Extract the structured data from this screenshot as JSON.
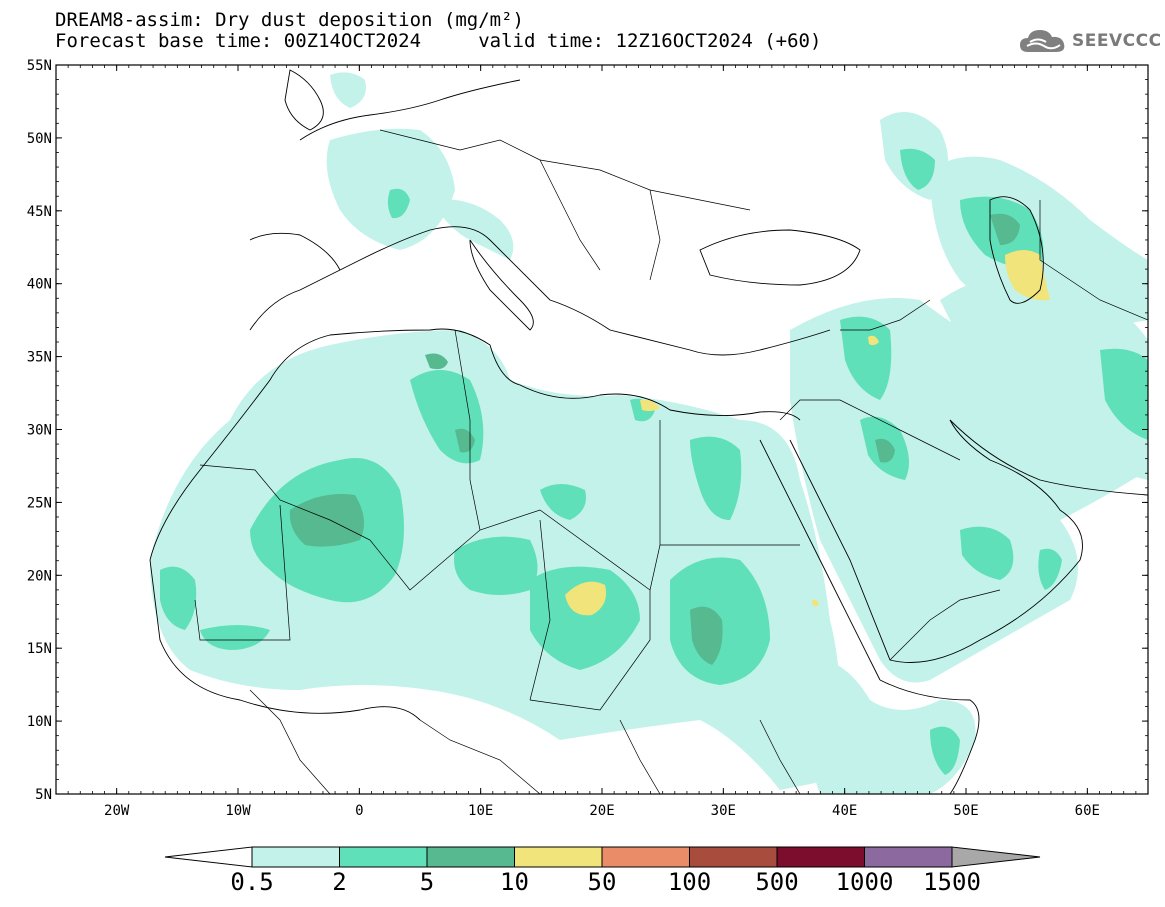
{
  "title_line1": "DREAM8-assim: Dry dust deposition (mg/m²)",
  "title_line2": "Forecast base time: 00Z14OCT2024     valid time: 12Z16OCT2024 (+60)",
  "logo_text": "SEEVCCC",
  "map": {
    "lat_labels": [
      "55N",
      "50N",
      "45N",
      "40N",
      "35N",
      "30N",
      "25N",
      "20N",
      "15N",
      "10N",
      "5N"
    ],
    "lon_labels": [
      "20W",
      "10W",
      "0",
      "10E",
      "20E",
      "30E",
      "40E",
      "50E",
      "60E"
    ],
    "extent": {
      "lon_min": -25,
      "lon_max": 65,
      "lat_min": 5,
      "lat_max": 55
    }
  },
  "colorbar": {
    "labels": [
      "0.5",
      "2",
      "5",
      "10",
      "50",
      "100",
      "500",
      "1000",
      "1500"
    ],
    "colors": [
      "#c2f2ea",
      "#5fe0b8",
      "#56b98f",
      "#f1e47a",
      "#e98c67",
      "#a84c3e",
      "#7c0d2c",
      "#8c6aa0"
    ],
    "under_color": "#ffffff",
    "over_color": "#a8a8a8"
  }
}
